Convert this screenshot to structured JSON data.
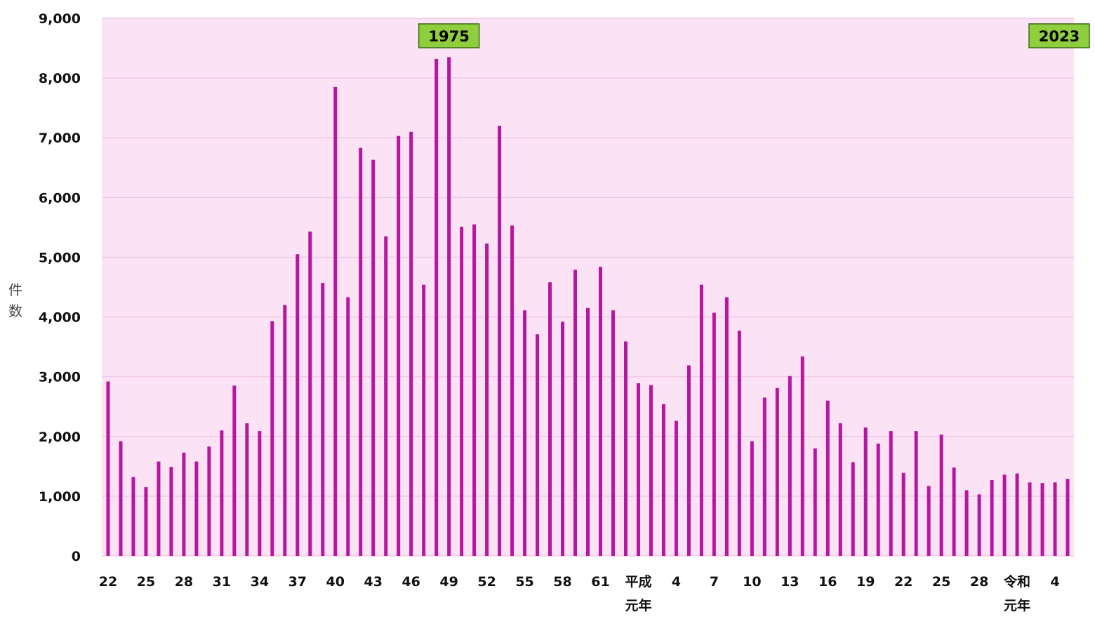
{
  "chart_data": {
    "type": "bar",
    "title": "",
    "xlabel": "",
    "ylabel": "件数",
    "ylim": [
      0,
      9000
    ],
    "yticks": [
      0,
      1000,
      2000,
      3000,
      4000,
      5000,
      6000,
      7000,
      8000,
      9000
    ],
    "ytick_labels": [
      "0",
      "1,000",
      "2,000",
      "3,000",
      "4,000",
      "5,000",
      "6,000",
      "7,000",
      "8,000",
      "9,000"
    ],
    "grid": true,
    "colors": {
      "bar": "#b5179e",
      "plot_bg": "#fbe3f5",
      "grid": "#f0c8e6",
      "annotation_bg": "#8fce3c",
      "annotation_border": "#3a6b12"
    },
    "x_tick_labels": [
      {
        "index": 0,
        "lines": [
          "22"
        ]
      },
      {
        "index": 3,
        "lines": [
          "25"
        ]
      },
      {
        "index": 6,
        "lines": [
          "28"
        ]
      },
      {
        "index": 9,
        "lines": [
          "31"
        ]
      },
      {
        "index": 12,
        "lines": [
          "34"
        ]
      },
      {
        "index": 15,
        "lines": [
          "37"
        ]
      },
      {
        "index": 18,
        "lines": [
          "40"
        ]
      },
      {
        "index": 21,
        "lines": [
          "43"
        ]
      },
      {
        "index": 24,
        "lines": [
          "46"
        ]
      },
      {
        "index": 27,
        "lines": [
          "49"
        ]
      },
      {
        "index": 30,
        "lines": [
          "52"
        ]
      },
      {
        "index": 33,
        "lines": [
          "55"
        ]
      },
      {
        "index": 36,
        "lines": [
          "58"
        ]
      },
      {
        "index": 39,
        "lines": [
          "61"
        ]
      },
      {
        "index": 42,
        "lines": [
          "平成",
          "元年"
        ]
      },
      {
        "index": 45,
        "lines": [
          "4"
        ]
      },
      {
        "index": 48,
        "lines": [
          "7"
        ]
      },
      {
        "index": 51,
        "lines": [
          "10"
        ]
      },
      {
        "index": 54,
        "lines": [
          "13"
        ]
      },
      {
        "index": 57,
        "lines": [
          "16"
        ]
      },
      {
        "index": 60,
        "lines": [
          "19"
        ]
      },
      {
        "index": 63,
        "lines": [
          "22"
        ]
      },
      {
        "index": 66,
        "lines": [
          "25"
        ]
      },
      {
        "index": 69,
        "lines": [
          "28"
        ]
      },
      {
        "index": 72,
        "lines": [
          "令和",
          "元年"
        ]
      },
      {
        "index": 75,
        "lines": [
          "4"
        ]
      }
    ],
    "annotations": [
      {
        "text": "1975",
        "index": 27
      },
      {
        "text": "2023",
        "index": 76
      }
    ],
    "values": [
      2920,
      1920,
      1320,
      1150,
      1580,
      1490,
      1730,
      1580,
      1830,
      2100,
      2850,
      2220,
      2090,
      3930,
      4200,
      5050,
      5430,
      4570,
      7850,
      4330,
      6830,
      6630,
      5350,
      7030,
      7100,
      4540,
      8320,
      8350,
      5510,
      5550,
      5230,
      7200,
      5530,
      4110,
      3710,
      4580,
      3920,
      4790,
      4150,
      4840,
      4110,
      3590,
      2890,
      2860,
      2540,
      2260,
      3190,
      4540,
      4070,
      4330,
      3770,
      1920,
      2650,
      2810,
      3010,
      3340,
      1800,
      2600,
      2220,
      1570,
      2150,
      1880,
      2090,
      1390,
      2090,
      1170,
      2030,
      1480,
      1100,
      1030,
      1270,
      1360,
      1380,
      1230,
      1220,
      1230,
      1290
    ]
  }
}
